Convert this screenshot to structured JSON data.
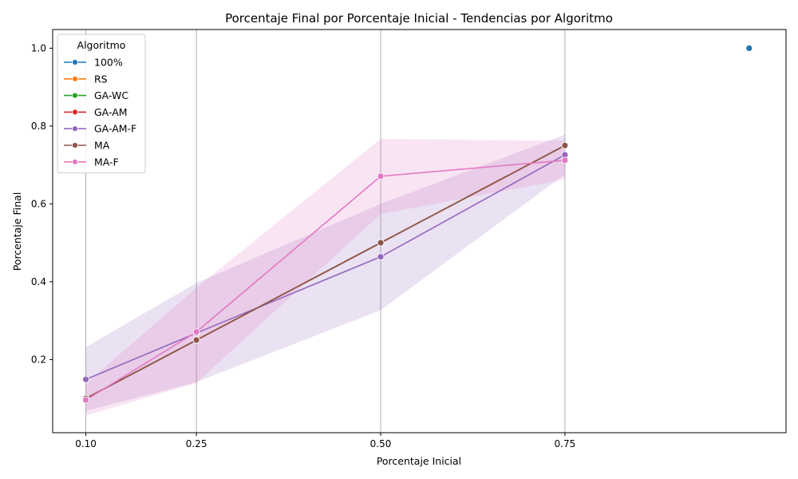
{
  "chart_data": {
    "type": "line",
    "title": "Porcentaje Final por Porcentaje Inicial - Tendencias por Algoritmo",
    "xlabel": "Porcentaje Inicial",
    "ylabel": "Porcentaje Final",
    "x_ticks": [
      "0.10",
      "0.25",
      "0.50",
      "0.75"
    ],
    "y_ticks": [
      "0.2",
      "0.4",
      "0.6",
      "0.8",
      "1.0"
    ],
    "xlim": [
      0.055,
      1.05
    ],
    "ylim": [
      0.012,
      1.048
    ],
    "grid": "vertical lines at x ticks",
    "legend": {
      "title": "Algoritmo",
      "placement": "top-left"
    },
    "series": [
      {
        "name": "100%",
        "color": "#1f77b4",
        "x": [
          1.0
        ],
        "y": [
          1.0
        ]
      },
      {
        "name": "RS",
        "color": "#ff7f0e",
        "x": [
          0.1,
          0.25,
          0.5,
          0.75
        ],
        "y": [
          0.1,
          0.25,
          0.5,
          0.75
        ]
      },
      {
        "name": "GA-WC",
        "color": "#2ca02c",
        "x": [
          0.1,
          0.25,
          0.5,
          0.75
        ],
        "y": [
          0.1,
          0.25,
          0.5,
          0.75
        ]
      },
      {
        "name": "GA-AM",
        "color": "#d62728",
        "x": [
          0.1,
          0.25,
          0.5,
          0.75
        ],
        "y": [
          0.1,
          0.25,
          0.5,
          0.75
        ]
      },
      {
        "name": "GA-AM-F",
        "color": "#9467bd",
        "x": [
          0.1,
          0.25,
          0.5,
          0.75
        ],
        "y": [
          0.149,
          0.268,
          0.464,
          0.726
        ],
        "ci_low": [
          0.068,
          0.142,
          0.327,
          0.676
        ],
        "ci_high": [
          0.232,
          0.397,
          0.6,
          0.778
        ]
      },
      {
        "name": "MA",
        "color": "#8c564b",
        "x": [
          0.1,
          0.25,
          0.5,
          0.75
        ],
        "y": [
          0.1,
          0.25,
          0.5,
          0.75
        ]
      },
      {
        "name": "MA-F",
        "color": "#e377c2",
        "x": [
          0.1,
          0.25,
          0.5,
          0.75
        ],
        "y": [
          0.096,
          0.271,
          0.671,
          0.712
        ],
        "ci_low": [
          0.056,
          0.14,
          0.574,
          0.663
        ],
        "ci_high": [
          0.138,
          0.384,
          0.767,
          0.762
        ]
      }
    ]
  }
}
